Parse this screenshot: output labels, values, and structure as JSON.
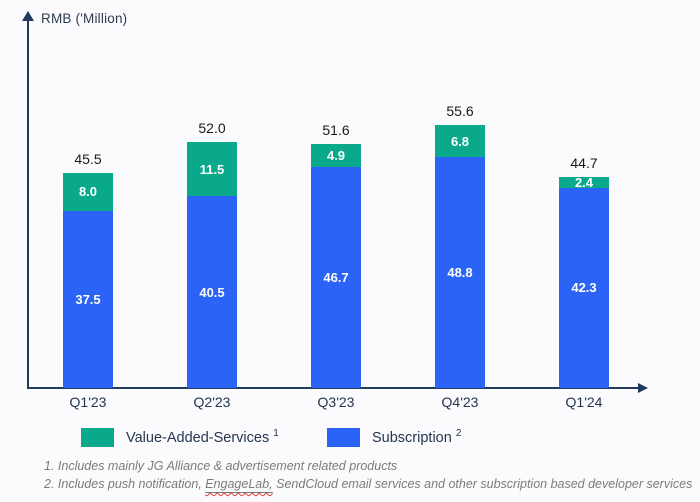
{
  "chart_data": {
    "type": "bar",
    "stacked": true,
    "categories": [
      "Q1'23",
      "Q2'23",
      "Q3'23",
      "Q4'23",
      "Q1'24"
    ],
    "series": [
      {
        "name": "Subscription",
        "color": "#2a63f6",
        "values": [
          37.5,
          40.5,
          46.7,
          48.8,
          42.3
        ]
      },
      {
        "name": "Value-Added-Services",
        "color": "#0ba98c",
        "values": [
          8.0,
          11.5,
          4.9,
          6.8,
          2.4
        ]
      }
    ],
    "totals": [
      45.5,
      52.0,
      51.6,
      55.6,
      44.7
    ],
    "title": "RMB ('Million)",
    "xlabel": "",
    "ylabel": "RMB ('Million)",
    "ylim": [
      0,
      60
    ],
    "grid": false,
    "legend_position": "bottom",
    "value_labels": "inside-white-bold, totals above bars"
  },
  "axis": {
    "y_title": "RMB ('Million)"
  },
  "legend": [
    {
      "label": "Value-Added-Services",
      "sup": "1",
      "color": "#0ba98c"
    },
    {
      "label": "Subscription",
      "sup": "2",
      "color": "#2a63f6"
    }
  ],
  "footnotes": {
    "line1": "1. Includes mainly JG Alliance & advertisement related products",
    "line2_pre": "2. Includes push notification, ",
    "line2_link": "EngageLab,",
    "line2_post": " SendCloud email services and other subscription based developer services"
  },
  "colors": {
    "axis": "#20395c",
    "vas_green": "#0ba98c",
    "subscription_blue": "#2a63f6",
    "total_label": "#1a1a1a",
    "category_label": "#24364f",
    "footnote_gray": "#7b7b7b",
    "spellcheck_red": "#e03c31",
    "background": "#fbfbfd"
  }
}
